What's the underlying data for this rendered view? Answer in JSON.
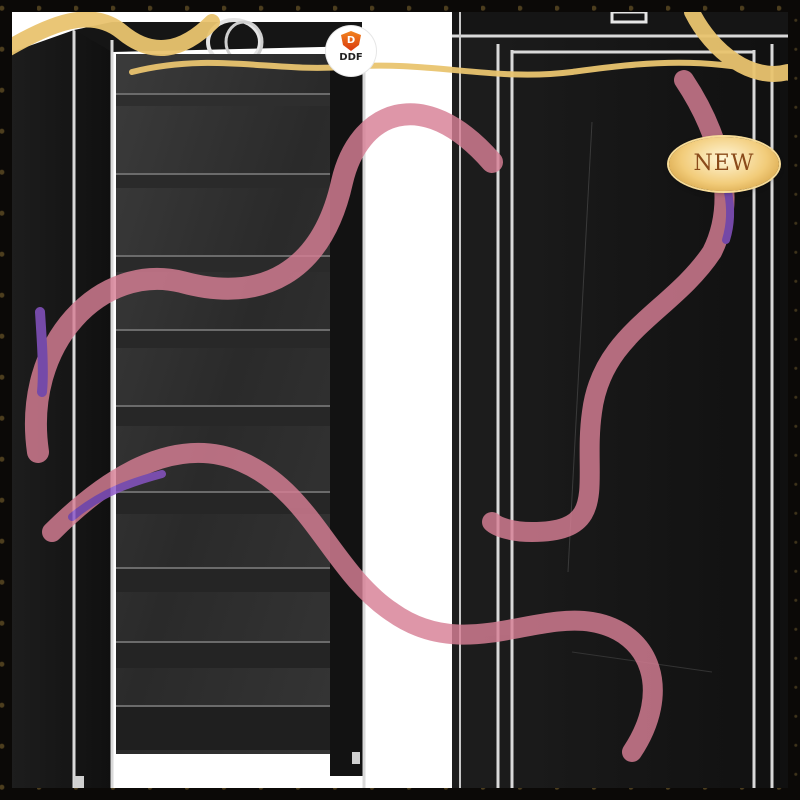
{
  "logo": {
    "mark": "D",
    "text": "DDF"
  },
  "badge": {
    "label": "NEW"
  },
  "colors": {
    "border_gold": "#d8aa55",
    "ribbon_pink": "#d77f95",
    "ribbon_purple": "#8a55c8",
    "cover_black": "#171717",
    "shelf_gray": "#2c2c2c",
    "trim": "#d9d9d9"
  },
  "product": {
    "shelves_left_unit": 10,
    "doors_right_unit": 2
  }
}
